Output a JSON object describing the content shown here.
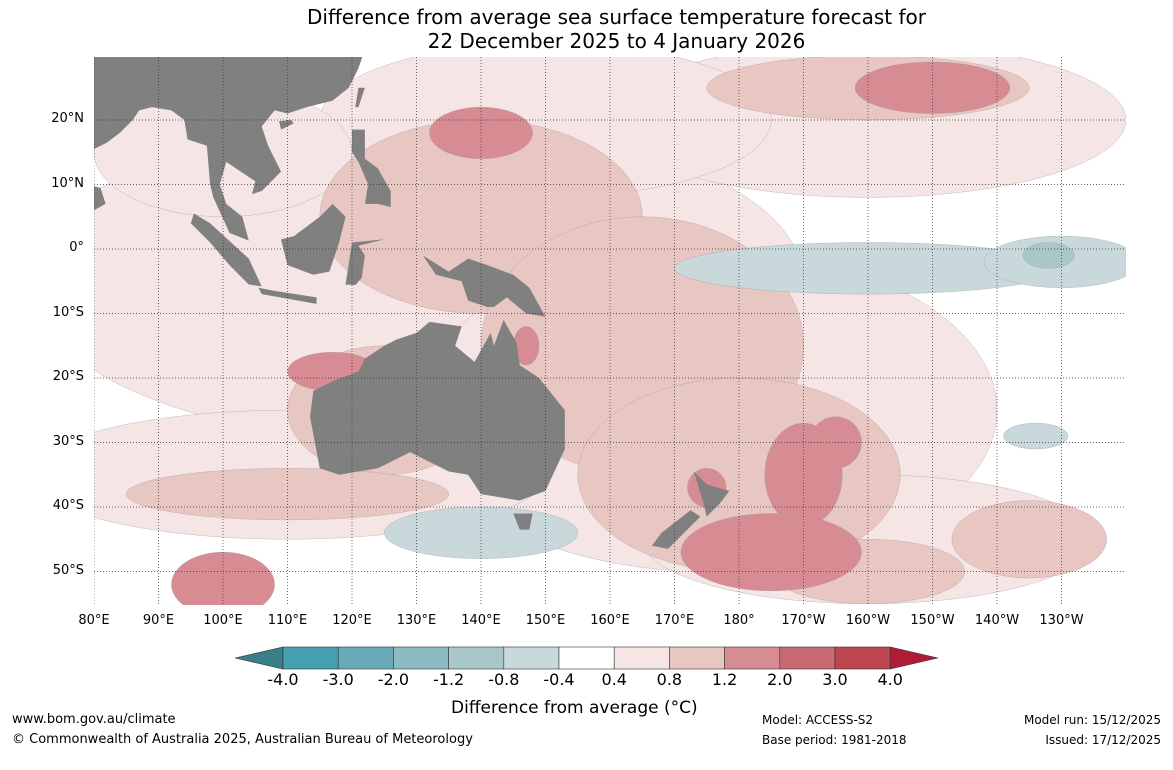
{
  "title": {
    "line1": "Difference from average sea surface temperature forecast for",
    "line2": "22 December 2025 to 4 January 2026"
  },
  "map": {
    "lon_labels": [
      "80°E",
      "90°E",
      "100°E",
      "110°E",
      "120°E",
      "130°E",
      "140°E",
      "150°E",
      "160°E",
      "170°E",
      "180°",
      "170°W",
      "160°W",
      "150°W",
      "140°W",
      "130°W"
    ],
    "lat_labels": [
      "20°N",
      "10°N",
      "0°",
      "10°S",
      "20°S",
      "30°S",
      "40°S",
      "50°S"
    ],
    "land_color": "#808080"
  },
  "colorbar": {
    "ticks": [
      "-4.0",
      "-3.0",
      "-2.0",
      "-1.2",
      "-0.8",
      "-0.4",
      "0.4",
      "0.8",
      "1.2",
      "2.0",
      "3.0",
      "4.0"
    ],
    "colors": [
      "#45a0b0",
      "#68aab7",
      "#8bbac1",
      "#a9c7cb",
      "#c8d8db",
      "#ffffff",
      "#f5e6e5",
      "#e8c6c2",
      "#d78c94",
      "#c96a73",
      "#be4651"
    ],
    "under_color": "#3a7f88",
    "over_color": "#b01c38",
    "label": "Difference from average (°C)"
  },
  "footer": {
    "url": "www.bom.gov.au/climate",
    "copyright": "© Commonwealth of Australia 2025, Australian Bureau of Meteorology",
    "model": "Model: ACCESS-S2",
    "base_period": "Base period: 1981-2018",
    "model_run": "Model run: 15/12/2025",
    "issued": "Issued: 17/12/2025"
  }
}
